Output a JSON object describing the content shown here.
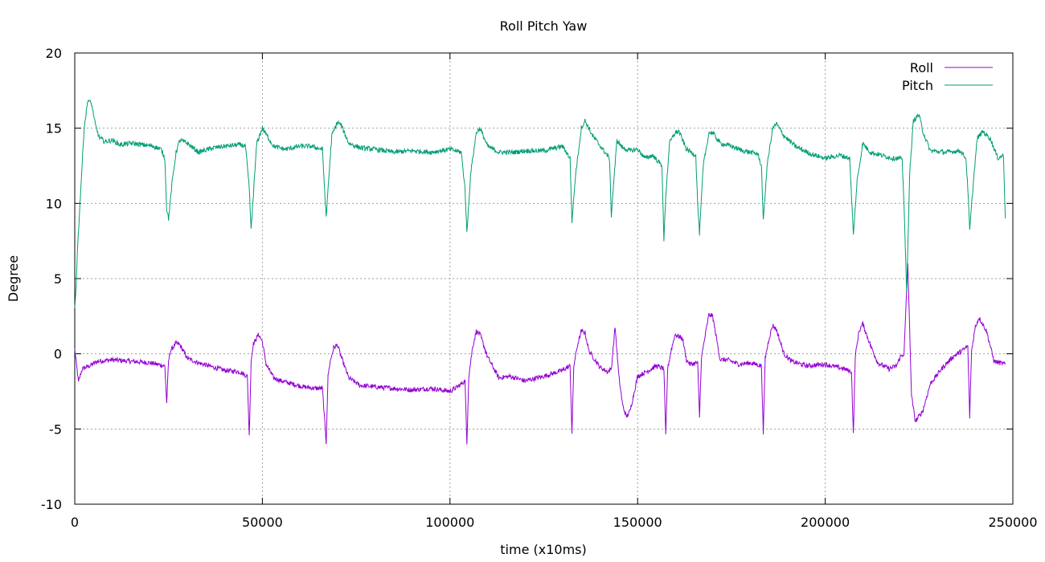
{
  "chart_data": {
    "type": "line",
    "title": "Roll Pitch Yaw",
    "xlabel": "time (x10ms)",
    "ylabel": "Degree",
    "xlim": [
      0,
      250000
    ],
    "ylim": [
      -10,
      20
    ],
    "xticks": [
      0,
      50000,
      100000,
      150000,
      200000,
      250000
    ],
    "xtick_labels": [
      "0",
      "50000",
      "100000",
      "150000",
      "200000",
      "250000"
    ],
    "yticks": [
      -10,
      -5,
      0,
      5,
      10,
      15,
      20
    ],
    "ytick_labels": [
      "-10",
      "-5",
      "0",
      "5",
      "10",
      "15",
      "20"
    ],
    "grid": true,
    "legend_position": "top-right",
    "series": [
      {
        "name": "Roll",
        "color": "#9400d3",
        "x": [
          0,
          1000,
          1500,
          2000,
          4000,
          6000,
          10000,
          15000,
          20000,
          24000,
          24500,
          25000,
          25500,
          27000,
          28000,
          30000,
          33000,
          37000,
          40000,
          44000,
          46000,
          46500,
          47000,
          47500,
          49000,
          50000,
          51000,
          53000,
          55000,
          58000,
          61000,
          64000,
          66000,
          67000,
          67500,
          68000,
          69000,
          70000,
          71000,
          73000,
          76000,
          80000,
          85000,
          90000,
          95000,
          100000,
          102000,
          104000,
          104500,
          105000,
          106000,
          107000,
          108000,
          110000,
          113000,
          116000,
          120000,
          125000,
          130000,
          132000,
          132500,
          133000,
          134000,
          135000,
          136000,
          137000,
          140000,
          142000,
          143000,
          144000,
          145000,
          146000,
          147000,
          148000,
          150000,
          153000,
          155000,
          157000,
          157500,
          158000,
          159000,
          160000,
          162000,
          163000,
          164000,
          166000,
          166500,
          167000,
          168000,
          169000,
          170000,
          172000,
          174000,
          177000,
          180000,
          183000,
          183500,
          184000,
          185000,
          186000,
          187000,
          189000,
          191000,
          195000,
          200000,
          205000,
          207000,
          207500,
          208000,
          209000,
          210000,
          212000,
          214000,
          217000,
          219000,
          220000,
          221000,
          222000,
          223000,
          224000,
          226000,
          228000,
          231000,
          234000,
          237000,
          238000,
          238500,
          239000,
          240000,
          241000,
          243000,
          245000,
          248000
        ],
        "values": [
          0.3,
          -1.9,
          -1.4,
          -1.0,
          -0.8,
          -0.5,
          -0.4,
          -0.5,
          -0.6,
          -0.8,
          -3.3,
          -0.5,
          0.2,
          0.7,
          0.6,
          -0.3,
          -0.6,
          -0.9,
          -1.1,
          -1.2,
          -1.5,
          -5.5,
          -0.5,
          0.6,
          1.3,
          0.8,
          -0.7,
          -1.6,
          -1.8,
          -2.0,
          -2.2,
          -2.3,
          -2.3,
          -5.9,
          -1.5,
          -0.6,
          0.4,
          0.6,
          -0.2,
          -1.6,
          -2.1,
          -2.2,
          -2.3,
          -2.4,
          -2.3,
          -2.5,
          -2.2,
          -1.8,
          -6.0,
          -1.5,
          0.4,
          1.5,
          1.3,
          -0.2,
          -1.6,
          -1.5,
          -1.8,
          -1.5,
          -1.1,
          -0.8,
          -5.3,
          -0.8,
          0.6,
          1.5,
          1.4,
          0.2,
          -0.9,
          -1.2,
          -1.0,
          1.8,
          -1.5,
          -3.4,
          -4.2,
          -3.8,
          -1.5,
          -1.1,
          -0.8,
          -1.0,
          -5.5,
          -1.0,
          0.3,
          1.3,
          1.0,
          -0.4,
          -0.7,
          -0.6,
          -4.2,
          -0.3,
          1.2,
          2.6,
          2.5,
          -0.4,
          -0.4,
          -0.7,
          -0.6,
          -0.8,
          -5.3,
          -0.3,
          1.0,
          1.9,
          1.6,
          0.0,
          -0.5,
          -0.8,
          -0.7,
          -1.0,
          -1.2,
          -5.4,
          -0.2,
          1.5,
          2.0,
          0.6,
          -0.6,
          -1.0,
          -0.8,
          -0.2,
          0.0,
          6.0,
          -2.8,
          -4.5,
          -3.8,
          -2.0,
          -1.0,
          -0.2,
          0.3,
          0.5,
          -4.2,
          0.2,
          1.8,
          2.4,
          1.5,
          -0.5,
          -0.7
        ]
      },
      {
        "name": "Pitch",
        "color": "#009e73",
        "x": [
          0,
          300,
          700,
          1500,
          2500,
          3500,
          4500,
          5500,
          6500,
          8000,
          10000,
          12000,
          15000,
          18000,
          21000,
          23000,
          24000,
          24500,
          25000,
          26000,
          27000,
          28000,
          30000,
          33000,
          37000,
          40000,
          44000,
          45500,
          46500,
          47000,
          47500,
          48500,
          50000,
          51000,
          53000,
          56000,
          60000,
          63000,
          66000,
          67000,
          67500,
          68500,
          70000,
          71000,
          73000,
          76000,
          80000,
          85000,
          90000,
          95000,
          100000,
          103000,
          104000,
          104500,
          105500,
          107000,
          108000,
          110000,
          113000,
          117000,
          120000,
          125000,
          130000,
          132000,
          132500,
          133500,
          135000,
          136000,
          138000,
          141000,
          142500,
          143000,
          143500,
          144500,
          146000,
          148000,
          150000,
          152000,
          154000,
          156500,
          157000,
          157500,
          158500,
          160000,
          161000,
          163000,
          165500,
          166000,
          166500,
          167500,
          169000,
          170000,
          172000,
          175000,
          178000,
          182000,
          183000,
          183500,
          184500,
          186000,
          187000,
          189000,
          192000,
          196000,
          200000,
          204000,
          206500,
          207000,
          207500,
          208500,
          210000,
          212000,
          215000,
          218000,
          220000,
          220500,
          221000,
          221700,
          222500,
          223500,
          225000,
          226000,
          228000,
          232000,
          236000,
          237500,
          238000,
          238500,
          239500,
          240500,
          242000,
          244000,
          246000,
          247500,
          248000
        ],
        "values": [
          3.0,
          4.2,
          6.8,
          10.5,
          15.0,
          16.9,
          16.6,
          15.2,
          14.4,
          14.1,
          14.2,
          13.9,
          14.0,
          13.9,
          13.8,
          13.6,
          13.0,
          9.6,
          9.0,
          11.5,
          13.4,
          14.2,
          14.0,
          13.4,
          13.7,
          13.8,
          13.9,
          13.8,
          11.0,
          8.2,
          10.2,
          14.0,
          15.0,
          14.6,
          13.8,
          13.6,
          13.8,
          13.8,
          13.6,
          9.0,
          11.0,
          14.5,
          15.4,
          15.2,
          14.0,
          13.7,
          13.6,
          13.4,
          13.5,
          13.4,
          13.6,
          13.4,
          11.0,
          8.0,
          12.0,
          14.7,
          15.0,
          13.8,
          13.4,
          13.4,
          13.5,
          13.5,
          13.8,
          13.0,
          8.8,
          12.0,
          15.0,
          15.5,
          14.5,
          13.5,
          13.0,
          9.2,
          11.0,
          14.2,
          13.7,
          13.5,
          13.6,
          13.0,
          13.2,
          12.5,
          7.5,
          10.5,
          14.0,
          14.7,
          14.8,
          13.6,
          13.2,
          10.0,
          8.0,
          12.5,
          14.7,
          14.7,
          14.0,
          13.8,
          13.5,
          13.3,
          12.5,
          8.8,
          12.5,
          15.0,
          15.3,
          14.5,
          13.8,
          13.3,
          13.0,
          13.2,
          13.0,
          10.5,
          7.9,
          11.5,
          14.0,
          13.4,
          13.2,
          13.0,
          13.0,
          12.8,
          10.0,
          4.0,
          12.0,
          15.5,
          15.9,
          14.8,
          13.5,
          13.4,
          13.5,
          13.0,
          11.0,
          8.2,
          11.5,
          14.3,
          14.8,
          14.3,
          13.0,
          13.2,
          9.0
        ]
      }
    ]
  }
}
